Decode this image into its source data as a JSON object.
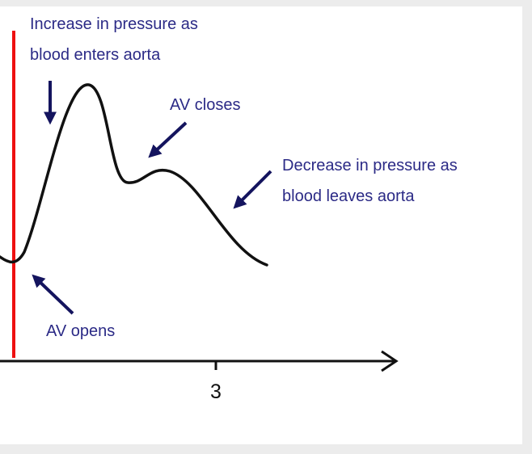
{
  "annotations": [
    {
      "lines": [
        "Increase in pressure as",
        "blood enters aorta"
      ]
    },
    {
      "lines": [
        "AV closes"
      ]
    },
    {
      "lines": [
        "Decrease in pressure as",
        "blood leaves aorta"
      ]
    },
    {
      "lines": [
        "AV opens"
      ]
    }
  ],
  "x_axis": {
    "tick_label": "3"
  }
}
